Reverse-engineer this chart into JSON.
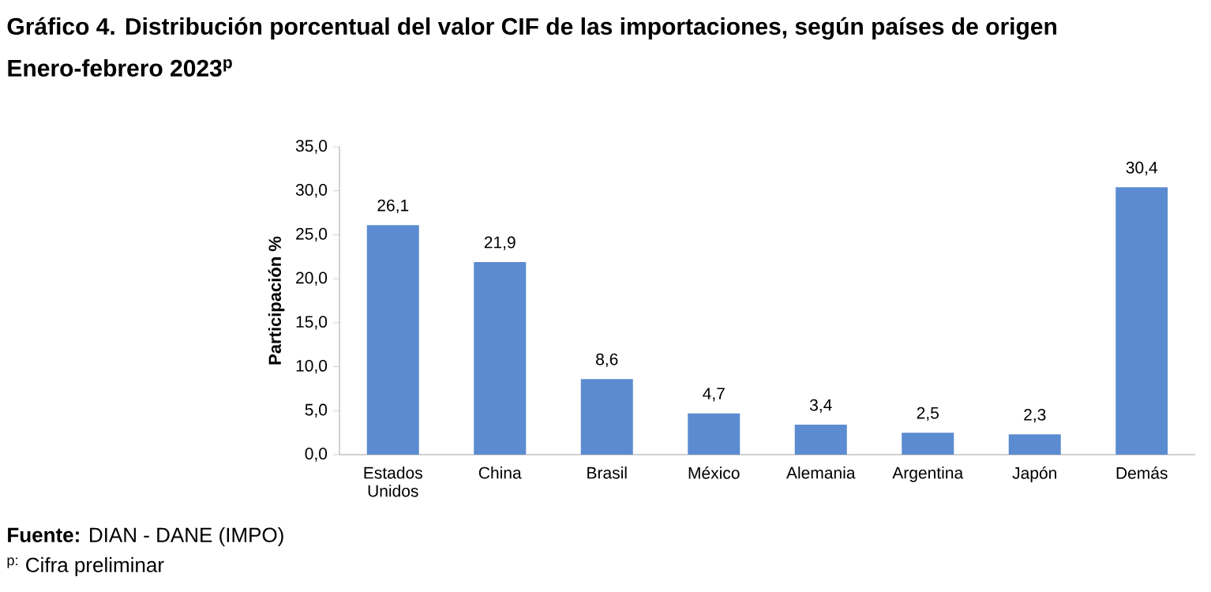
{
  "chart_data": {
    "type": "bar",
    "title": "Gráfico 4. Distribución porcentual del valor CIF de las importaciones, según países de origen",
    "subtitle": "Enero-febrero 2023$^{p}$",
    "ylabel": "Participación %",
    "categories": [
      "Estados Unidos",
      "China",
      "Brasil",
      "México",
      "Alemania",
      "Argentina",
      "Japón",
      "Demás"
    ],
    "values": [
      26.1,
      21.9,
      8.6,
      4.7,
      3.4,
      2.5,
      2.3,
      30.4
    ],
    "value_labels": [
      "26,1",
      "21,9",
      "8,6",
      "4,7",
      "3,4",
      "2,5",
      "2,3",
      "30,4"
    ],
    "color": "#5b8bd0",
    "ylim": [
      0,
      35
    ],
    "yticks": [
      {
        "value": 0,
        "label": "0,0"
      },
      {
        "value": 5,
        "label": "5,0"
      },
      {
        "value": 10,
        "label": "10,0"
      },
      {
        "value": 15,
        "label": "15,0"
      },
      {
        "value": 20,
        "label": "20,0"
      },
      {
        "value": 25,
        "label": "25,0"
      },
      {
        "value": 30,
        "label": "30,0"
      },
      {
        "value": 35,
        "label": "35,0"
      }
    ],
    "annotations": [
      "**Fuente:** DIAN - DANE (IMPO)",
      "$^{p:}$ Cifra preliminar"
    ]
  }
}
